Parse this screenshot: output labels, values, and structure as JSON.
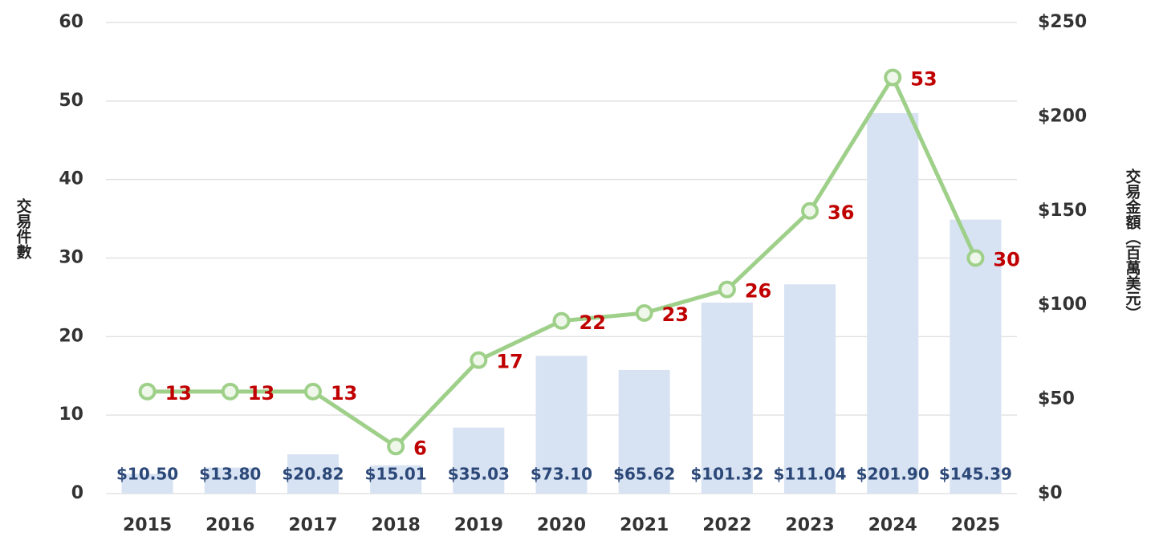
{
  "chart_data": {
    "type": "bar",
    "categories": [
      "2015",
      "2016",
      "2017",
      "2018",
      "2019",
      "2020",
      "2021",
      "2022",
      "2023",
      "2024",
      "2025"
    ],
    "ylabel": "交易件數",
    "y2label": "交易金額（百萬美元）",
    "ylim": [
      0,
      60
    ],
    "yticks": [
      0,
      10,
      20,
      30,
      40,
      50,
      60
    ],
    "y2lim": [
      0,
      250
    ],
    "y2ticks": [
      {
        "value": 0,
        "label": "$0"
      },
      {
        "value": 50,
        "label": "$50"
      },
      {
        "value": 100,
        "label": "$100"
      },
      {
        "value": 150,
        "label": "$150"
      },
      {
        "value": 200,
        "label": "$200"
      },
      {
        "value": 250,
        "label": "$250"
      }
    ],
    "grid": true,
    "series": [
      {
        "type": "bar",
        "axis": "y2",
        "color": "#d7e2f2",
        "values": [
          10.5,
          13.8,
          20.82,
          15.01,
          35.03,
          73.1,
          65.62,
          101.32,
          111.04,
          201.9,
          145.39
        ],
        "value_labels": [
          "$10.50",
          "$13.80",
          "$20.82",
          "$15.01",
          "$35.03",
          "$73.10",
          "$65.62",
          "$101.32",
          "$111.04",
          "$201.90",
          "$145.39"
        ]
      },
      {
        "type": "line",
        "axis": "y",
        "color": "#9fd08a",
        "values": [
          13,
          13,
          13,
          6,
          17,
          22,
          23,
          26,
          36,
          53,
          30
        ]
      }
    ]
  }
}
